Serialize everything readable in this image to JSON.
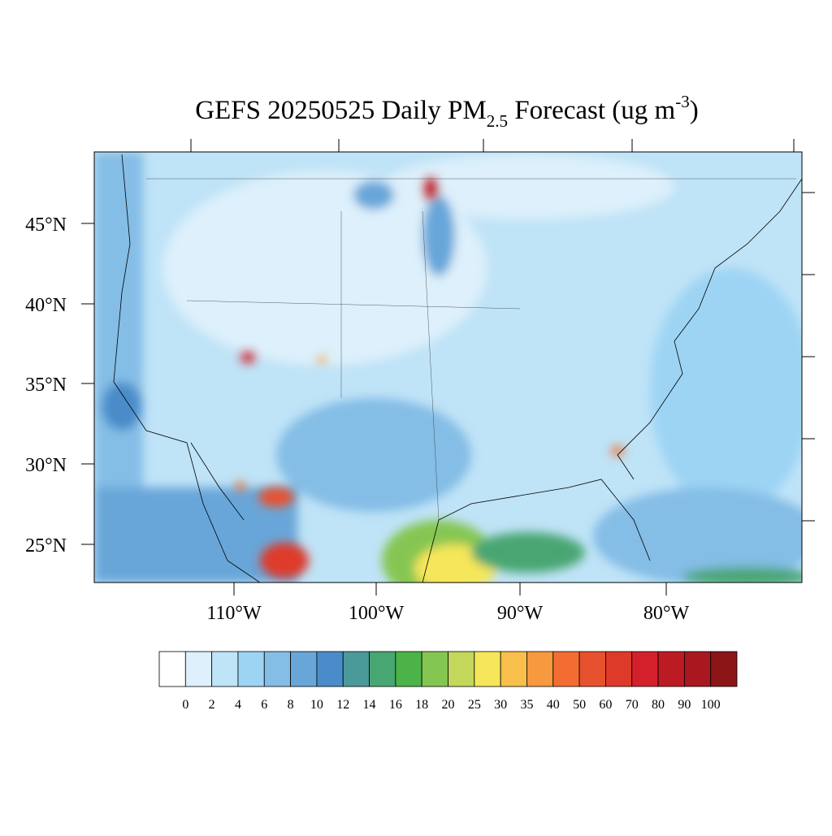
{
  "title": {
    "main": "GEFS 20250525 Daily PM",
    "subscript": "2.5",
    "middle": " Forecast (ug m",
    "superscript": "-3",
    "end": ")"
  },
  "latitude_labels": [
    "45°N",
    "40°N",
    "35°N",
    "30°N",
    "25°N"
  ],
  "longitude_labels": [
    "110°W",
    "100°W",
    "90°W",
    "80°W"
  ],
  "colorbar": {
    "levels": [
      0,
      2,
      4,
      6,
      8,
      10,
      12,
      14,
      16,
      18,
      20,
      25,
      30,
      35,
      40,
      50,
      60,
      70,
      80,
      90,
      100
    ],
    "colors": [
      "#ffffff",
      "#ddf0fb",
      "#bfe3f7",
      "#9dd4f4",
      "#84bde6",
      "#68a6d9",
      "#4a8cc9",
      "#4b9a9a",
      "#48a673",
      "#4bb348",
      "#85c652",
      "#c3d75a",
      "#f6e65a",
      "#f8c04a",
      "#f7993e",
      "#f36d32",
      "#e8512d",
      "#de3a2a",
      "#d4202a",
      "#bd1b24",
      "#a9181f",
      "#8c1518"
    ]
  }
}
